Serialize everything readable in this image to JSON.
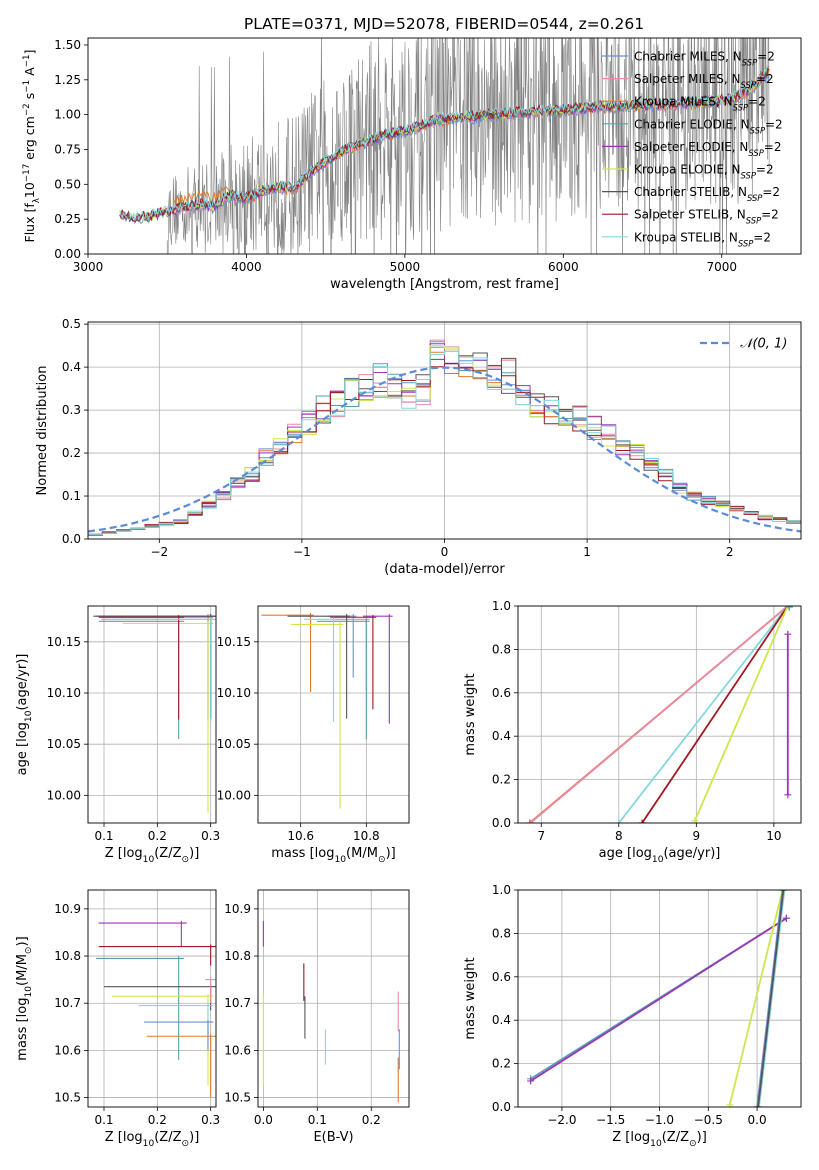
{
  "title": "PLATE=0371, MJD=52078, FIBERID=0544, z=0.261",
  "colors": {
    "chabrier_miles": "#6a8fd6",
    "salpeter_miles": "#e88aa8",
    "kroupa_miles": "#e07a2e",
    "chabrier_elodie": "#58a0b0",
    "salpeter_elodie": "#9a36b8",
    "kroupa_elodie": "#cde84c",
    "chabrier_stelib": "#555555",
    "salpeter_stelib": "#a01820",
    "kroupa_stelib": "#82d8de",
    "data_gray": "#808080",
    "normal_curve": "#5b8bd8"
  },
  "chart_data": [
    {
      "id": "spectrum",
      "type": "line",
      "title": "PLATE=0371, MJD=52078, FIBERID=0544, z=0.261",
      "xlabel": "wavelength [Angstrom, rest frame]",
      "ylabel": "Flux [f$_λ$10$^{-17}$ erg cm$^{-2}$ s$^{-1}$ A$^{-1}$]",
      "ylabel_parts": {
        "a": "Flux [f",
        "b": "λ",
        "c": "10",
        "d": "−17",
        "e": " erg cm",
        "f": "−2",
        "g": " s",
        "h": "−1",
        "i": " A",
        "j": "−1",
        "k": "]"
      },
      "xlim": [
        3000,
        7500
      ],
      "ylim": [
        0,
        1.55
      ],
      "xticks": [
        "3000",
        "4000",
        "5000",
        "6000",
        "7000"
      ],
      "yticks": [
        "0.00",
        "0.25",
        "0.50",
        "0.75",
        "1.00",
        "1.25",
        "1.50"
      ],
      "legend_position": "top-right",
      "legend": [
        {
          "name": "Chabrier MILES, N",
          "sub": "SSP",
          "suffix": "=2"
        },
        {
          "name": "Salpeter MILES, N",
          "sub": "SSP",
          "suffix": "=2"
        },
        {
          "name": "Kroupa MILES, N",
          "sub": "SSP",
          "suffix": "=2"
        },
        {
          "name": "Chabrier ELODIE, N",
          "sub": "SSP",
          "suffix": "=2"
        },
        {
          "name": "Salpeter ELODIE, N",
          "sub": "SSP",
          "suffix": "=2"
        },
        {
          "name": "Kroupa ELODIE, N",
          "sub": "SSP",
          "suffix": "=2"
        },
        {
          "name": "Chabrier STELIB, N",
          "sub": "SSP",
          "suffix": "=2"
        },
        {
          "name": "Salpeter STELIB, N",
          "sub": "SSP",
          "suffix": "=2"
        },
        {
          "name": "Kroupa STELIB, N",
          "sub": "SSP",
          "suffix": "=2"
        }
      ],
      "model_continuum": {
        "x": [
          3200,
          3300,
          3400,
          3500,
          3600,
          3700,
          3800,
          3900,
          4000,
          4100,
          4200,
          4300,
          4400,
          4500,
          4600,
          4700,
          4800,
          4900,
          5000,
          5200,
          5400,
          5600,
          5800,
          6000,
          6200,
          6400,
          6600,
          6800,
          7000,
          7100,
          7200,
          7300
        ],
        "y": [
          0.28,
          0.25,
          0.27,
          0.3,
          0.33,
          0.35,
          0.34,
          0.42,
          0.4,
          0.45,
          0.48,
          0.47,
          0.58,
          0.66,
          0.73,
          0.78,
          0.82,
          0.86,
          0.88,
          0.96,
          0.98,
          1.0,
          1.02,
          1.03,
          1.05,
          1.06,
          1.07,
          1.08,
          1.1,
          1.13,
          1.2,
          1.31
        ]
      },
      "data_range": [
        3500,
        7300
      ]
    },
    {
      "id": "residuals",
      "type": "line",
      "xlabel": "(data-model)/error",
      "ylabel": "Normed distribution",
      "xlim": [
        -2.5,
        2.5
      ],
      "ylim": [
        0,
        0.505
      ],
      "xticks": [
        "−2",
        "−1",
        "0",
        "1",
        "2"
      ],
      "yticks": [
        "0.0",
        "0.1",
        "0.2",
        "0.3",
        "0.4",
        "0.5"
      ],
      "legend_position": "top-right",
      "legend": [
        {
          "name": "𝒩(0, 1)"
        }
      ],
      "hist_centers": [
        -2.45,
        -2.35,
        -2.25,
        -2.15,
        -2.05,
        -1.95,
        -1.85,
        -1.75,
        -1.65,
        -1.55,
        -1.45,
        -1.35,
        -1.25,
        -1.15,
        -1.05,
        -0.95,
        -0.85,
        -0.75,
        -0.65,
        -0.55,
        -0.45,
        -0.35,
        -0.25,
        -0.15,
        -0.05,
        0.05,
        0.15,
        0.25,
        0.35,
        0.45,
        0.55,
        0.65,
        0.75,
        0.85,
        0.95,
        1.05,
        1.15,
        1.25,
        1.35,
        1.45,
        1.55,
        1.65,
        1.75,
        1.85,
        1.95,
        2.05,
        2.15,
        2.25,
        2.35,
        2.45
      ],
      "hist_base": [
        0.01,
        0.015,
        0.02,
        0.025,
        0.03,
        0.035,
        0.04,
        0.06,
        0.08,
        0.1,
        0.13,
        0.15,
        0.19,
        0.22,
        0.25,
        0.27,
        0.3,
        0.32,
        0.34,
        0.36,
        0.37,
        0.36,
        0.34,
        0.35,
        0.44,
        0.43,
        0.4,
        0.41,
        0.39,
        0.38,
        0.35,
        0.31,
        0.3,
        0.29,
        0.28,
        0.26,
        0.24,
        0.22,
        0.2,
        0.17,
        0.15,
        0.12,
        0.1,
        0.09,
        0.08,
        0.07,
        0.06,
        0.05,
        0.045,
        0.04
      ]
    },
    {
      "id": "age_vs_Z",
      "type": "scatter",
      "xlabel_parts": {
        "a": "Z [log",
        "b": "10",
        "c": "(Z/Z",
        "d": "⊙",
        "e": ")]"
      },
      "ylabel_parts": {
        "a": "age  [log",
        "b": "10",
        "c": "(age/yr)]"
      },
      "xlim": [
        0.07,
        0.31
      ],
      "ylim": [
        9.973,
        10.185
      ],
      "xticks": [
        "0.1",
        "0.2",
        "0.3"
      ],
      "yticks": [
        "10.00",
        "10.05",
        "10.10",
        "10.15"
      ],
      "points": [
        {
          "c": "chabrier_miles",
          "x": 0.295,
          "y": 10.175,
          "xerr": 0.21,
          "yerr": 0.1
        },
        {
          "c": "salpeter_miles",
          "x": 0.295,
          "y": 10.172,
          "xerr": 0.2,
          "yerr": 0.1
        },
        {
          "c": "kroupa_miles",
          "x": 0.295,
          "y": 10.174,
          "xerr": 0.2,
          "yerr": 0.1
        },
        {
          "c": "chabrier_elodie",
          "x": 0.24,
          "y": 10.17,
          "xerr": 0.15,
          "yerr": 0.115
        },
        {
          "c": "salpeter_elodie",
          "x": 0.3,
          "y": 10.175,
          "xerr": 0.21,
          "yerr": 0.1
        },
        {
          "c": "kroupa_elodie",
          "x": 0.295,
          "y": 10.168,
          "xerr": 0.16,
          "yerr": 0.185
        },
        {
          "c": "chabrier_stelib",
          "x": 0.3,
          "y": 10.175,
          "xerr": 0.22,
          "yerr": 0.1
        },
        {
          "c": "salpeter_stelib",
          "x": 0.24,
          "y": 10.174,
          "xerr": 0.15,
          "yerr": 0.1
        },
        {
          "c": "kroupa_stelib",
          "x": 0.3,
          "y": 10.172,
          "xerr": 0.2,
          "yerr": 0.1
        }
      ]
    },
    {
      "id": "age_vs_mass",
      "type": "scatter",
      "xlabel_parts": {
        "a": "mass [log",
        "b": "10",
        "c": "(M/M",
        "d": "⊙",
        "e": ")]"
      },
      "xlim": [
        10.47,
        10.93
      ],
      "ylim": [
        9.973,
        10.185
      ],
      "xticks": [
        "10.6",
        "10.8"
      ],
      "yticks": [
        "10.00",
        "10.05",
        "10.10",
        "10.15"
      ],
      "points": [
        {
          "c": "chabrier_miles",
          "x": 10.76,
          "y": 10.175,
          "xerr": 0.08,
          "yerr": 0.06
        },
        {
          "c": "salpeter_miles",
          "x": 10.8,
          "y": 10.172,
          "xerr": 0.1,
          "yerr": 0.07
        },
        {
          "c": "kroupa_miles",
          "x": 10.63,
          "y": 10.176,
          "xerr": 0.15,
          "yerr": 0.075
        },
        {
          "c": "chabrier_elodie",
          "x": 10.8,
          "y": 10.17,
          "xerr": 0.15,
          "yerr": 0.115
        },
        {
          "c": "salpeter_elodie",
          "x": 10.87,
          "y": 10.175,
          "xerr": 0.08,
          "yerr": 0.105
        },
        {
          "c": "kroupa_elodie",
          "x": 10.72,
          "y": 10.167,
          "xerr": 0.15,
          "yerr": 0.18
        },
        {
          "c": "chabrier_stelib",
          "x": 10.74,
          "y": 10.175,
          "xerr": 0.18,
          "yerr": 0.1
        },
        {
          "c": "salpeter_stelib",
          "x": 10.82,
          "y": 10.174,
          "xerr": 0.13,
          "yerr": 0.09
        },
        {
          "c": "kroupa_stelib",
          "x": 10.7,
          "y": 10.172,
          "xerr": 0.09,
          "yerr": 0.1
        }
      ]
    },
    {
      "id": "weight_vs_age",
      "type": "line",
      "xlabel_parts": {
        "a": "age  [log",
        "b": "10",
        "c": "(age/yr)]"
      },
      "ylabel": "mass weight",
      "xlim": [
        6.7,
        10.35
      ],
      "ylim": [
        0,
        1.0
      ],
      "xticks": [
        "7",
        "8",
        "9",
        "10"
      ],
      "yticks": [
        "0.0",
        "0.2",
        "0.4",
        "0.6",
        "0.8",
        "1.0"
      ],
      "lines": [
        {
          "c": "kroupa_miles",
          "x": [
            6.85,
            10.18
          ],
          "y": [
            0.0,
            1.0
          ]
        },
        {
          "c": "salpeter_miles",
          "x": [
            6.86,
            10.18
          ],
          "y": [
            0.0,
            1.0
          ]
        },
        {
          "c": "kroupa_stelib",
          "x": [
            8.0,
            10.18
          ],
          "y": [
            0.0,
            1.0
          ]
        },
        {
          "c": "salpeter_stelib",
          "x": [
            8.3,
            10.18
          ],
          "y": [
            0.0,
            1.0
          ]
        },
        {
          "c": "kroupa_elodie",
          "x": [
            8.98,
            10.18
          ],
          "y": [
            0.01,
            1.0
          ]
        },
        {
          "c": "salpeter_elodie",
          "x": [
            10.18,
            10.18
          ],
          "y": [
            0.13,
            0.87
          ]
        },
        {
          "c": "chabrier_elodie",
          "x": [
            10.2,
            10.2
          ],
          "y": [
            0.995,
            1.0
          ]
        }
      ]
    },
    {
      "id": "mass_vs_Z",
      "type": "scatter",
      "xlabel_parts": {
        "a": "Z [log",
        "b": "10",
        "c": "(Z/Z",
        "d": "⊙",
        "e": ")]"
      },
      "ylabel_parts": {
        "a": "mass [log",
        "b": "10",
        "c": "(M/M",
        "d": "⊙",
        "e": ")]"
      },
      "xlim": [
        0.07,
        0.31
      ],
      "ylim": [
        10.48,
        10.94
      ],
      "xticks": [
        "0.1",
        "0.2",
        "0.3"
      ],
      "yticks": [
        "10.5",
        "10.6",
        "10.7",
        "10.8",
        "10.9"
      ],
      "points": [
        {
          "c": "salpeter_elodie",
          "x": 0.245,
          "y": 10.87,
          "xerr": 0.155,
          "yerr": 0.05
        },
        {
          "c": "salpeter_stelib",
          "x": 0.3,
          "y": 10.82,
          "xerr": 0.21,
          "yerr": 0.04
        },
        {
          "c": "chabrier_elodie",
          "x": 0.24,
          "y": 10.795,
          "xerr": 0.155,
          "yerr": 0.215
        },
        {
          "c": "chabrier_stelib",
          "x": 0.3,
          "y": 10.735,
          "xerr": 0.2,
          "yerr": 0.05
        },
        {
          "c": "kroupa_elodie",
          "x": 0.295,
          "y": 10.715,
          "xerr": 0.18,
          "yerr": 0.19
        },
        {
          "c": "kroupa_stelib",
          "x": 0.295,
          "y": 10.695,
          "xerr": 0.13,
          "yerr": 0.08
        },
        {
          "c": "chabrier_miles",
          "x": 0.295,
          "y": 10.66,
          "xerr": 0.12,
          "yerr": 0.06
        },
        {
          "c": "kroupa_miles",
          "x": 0.3,
          "y": 10.63,
          "xerr": 0.12,
          "yerr": 0.13
        },
        {
          "c": "salpeter_miles",
          "x": 0.3,
          "y": 10.75,
          "xerr": 0.01,
          "yerr": 0.05
        }
      ]
    },
    {
      "id": "mass_vs_EBV",
      "type": "scatter",
      "xlabel": "E(B-V)",
      "xlim": [
        -0.01,
        0.27
      ],
      "ylim": [
        10.48,
        10.94
      ],
      "xticks": [
        "0.0",
        "0.1",
        "0.2"
      ],
      "yticks": [
        "10.5",
        "10.6",
        "10.7",
        "10.8",
        "10.9"
      ],
      "points": [
        {
          "c": "salpeter_elodie",
          "x": 0.0,
          "y": 10.87,
          "yerr": 0.05
        },
        {
          "c": "kroupa_elodie",
          "x": 0.0,
          "y": 10.715,
          "yerr": 0.19
        },
        {
          "c": "salpeter_stelib",
          "x": 0.075,
          "y": 10.78,
          "yerr": 0.075
        },
        {
          "c": "chabrier_stelib",
          "x": 0.077,
          "y": 10.71,
          "yerr": 0.085
        },
        {
          "c": "kroupa_stelib",
          "x": 0.115,
          "y": 10.64,
          "yerr": 0.07
        },
        {
          "c": "salpeter_miles",
          "x": 0.25,
          "y": 10.72,
          "yerr": 0.08
        },
        {
          "c": "kroupa_miles",
          "x": 0.25,
          "y": 10.58,
          "yerr": 0.09
        },
        {
          "c": "chabrier_miles",
          "x": 0.252,
          "y": 10.64,
          "yerr": 0.08
        }
      ]
    },
    {
      "id": "weight_vs_Z",
      "type": "line",
      "xlabel_parts": {
        "a": "Z [log",
        "b": "10",
        "c": "(Z/Z",
        "d": "⊙",
        "e": ")]"
      },
      "ylabel": "mass weight",
      "xlim": [
        -2.45,
        0.45
      ],
      "ylim": [
        0,
        1.0
      ],
      "xticks": [
        "−2.0",
        "−1.5",
        "−1.0",
        "−0.5",
        "0.0"
      ],
      "yticks": [
        "0.0",
        "0.2",
        "0.4",
        "0.6",
        "0.8",
        "1.0"
      ],
      "lines": [
        {
          "c": "chabrier_elodie",
          "x": [
            -2.32,
            0.3
          ],
          "y": [
            0.13,
            0.87
          ]
        },
        {
          "c": "salpeter_elodie",
          "x": [
            -2.32,
            0.3
          ],
          "y": [
            0.12,
            0.87
          ]
        },
        {
          "c": "kroupa_elodie",
          "x": [
            -0.28,
            0.26
          ],
          "y": [
            0.01,
            1.0
          ]
        },
        {
          "c": "chabrier_miles",
          "x": [
            0.0,
            0.26
          ],
          "y": [
            0.0,
            1.0
          ]
        },
        {
          "c": "kroupa_stelib",
          "x": [
            0.02,
            0.28
          ],
          "y": [
            0.0,
            1.0
          ]
        },
        {
          "c": "chabrier_stelib",
          "x": [
            0.01,
            0.27
          ],
          "y": [
            0.0,
            1.0
          ]
        }
      ]
    }
  ]
}
